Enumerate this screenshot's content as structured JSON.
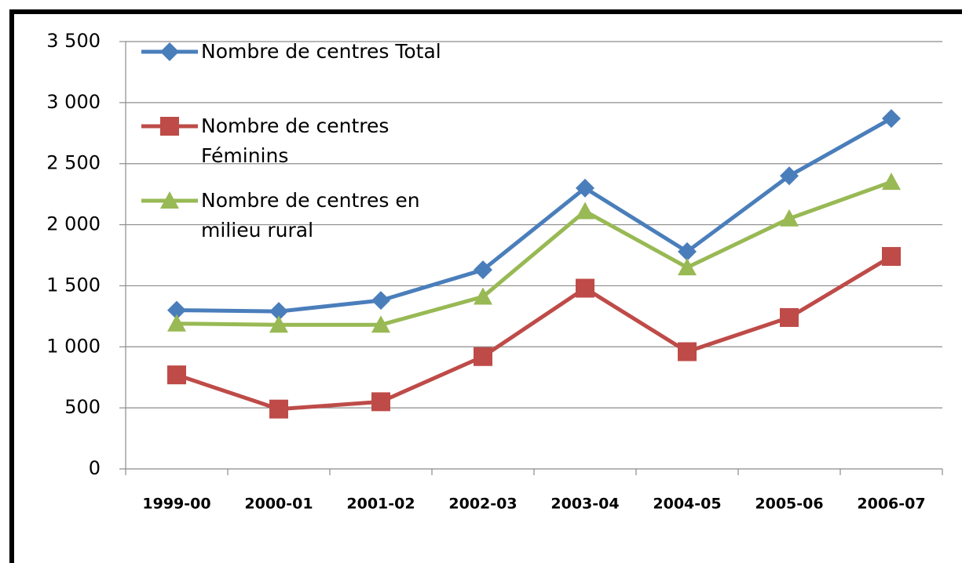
{
  "chart_data": {
    "type": "line",
    "categories": [
      "1999-00",
      "2000-01",
      "2001-02",
      "2002-03",
      "2003-04",
      "2004-05",
      "2005-06",
      "2006-07"
    ],
    "series": [
      {
        "name": "Nombre de centres Total",
        "color": "#4a7ebb",
        "marker": "diamond",
        "values": [
          1300,
          1290,
          1380,
          1630,
          2300,
          1780,
          2400,
          2870
        ]
      },
      {
        "name": "Nombre de centres Féminins",
        "color": "#be4b48",
        "marker": "square",
        "values": [
          770,
          490,
          550,
          920,
          1480,
          960,
          1240,
          1740
        ]
      },
      {
        "name": "Nombre de centres en milieu rural",
        "color": "#98b954",
        "marker": "triangle",
        "values": [
          1190,
          1180,
          1180,
          1410,
          2110,
          1650,
          2050,
          2350
        ]
      }
    ],
    "ylim": [
      0,
      3500
    ],
    "yticks": [
      0,
      500,
      {
        "value": 1000,
        "label": "1 000"
      },
      {
        "value": 1500,
        "label": "1 500"
      },
      {
        "value": 2000,
        "label": "2 000"
      },
      {
        "value": 2500,
        "label": "2 500"
      },
      {
        "value": 3000,
        "label": "3 000"
      },
      {
        "value": 3500,
        "label": "3 500"
      }
    ],
    "grid": true,
    "legend": "upper left"
  }
}
